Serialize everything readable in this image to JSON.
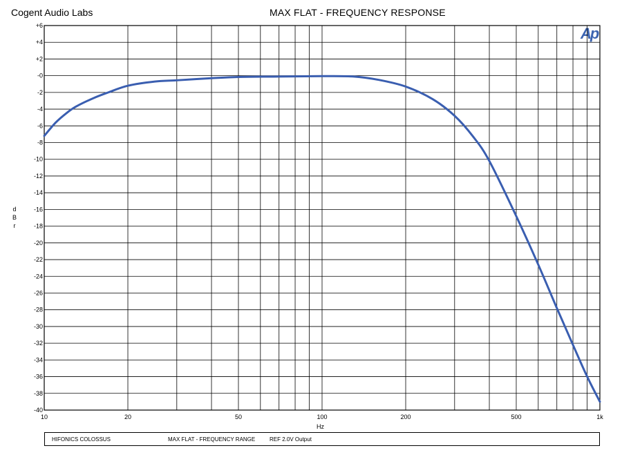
{
  "header": {
    "company": "Cogent Audio Labs",
    "title": "MAX FLAT  -  FREQUENCY RESPONSE"
  },
  "logo_text": "Ap",
  "footer": {
    "device": "HIFONICS COLOSSUS",
    "range": "MAX FLAT  -  FREQUENCY RANGE",
    "ref": "REF 2.0V Output"
  },
  "colors": {
    "curve": "#3a5eb0",
    "grid": "#000000",
    "logo": "#3c64b0"
  },
  "chart_data": {
    "type": "line",
    "title": "MAX FLAT  -  FREQUENCY RESPONSE",
    "xlabel": "Hz",
    "ylabel": "d B r",
    "xscale": "log",
    "xlim": [
      10,
      1000
    ],
    "ylim": [
      -40,
      6
    ],
    "grid": true,
    "xticks": [
      {
        "value": 10,
        "label": "10"
      },
      {
        "value": 20,
        "label": "20"
      },
      {
        "value": 50,
        "label": "50"
      },
      {
        "value": 100,
        "label": "100"
      },
      {
        "value": 200,
        "label": "200"
      },
      {
        "value": 500,
        "label": "500"
      },
      {
        "value": 1000,
        "label": "1k"
      }
    ],
    "yticks": [
      {
        "value": 6,
        "label": "+6"
      },
      {
        "value": 4,
        "label": "+4"
      },
      {
        "value": 2,
        "label": "+2"
      },
      {
        "value": 0,
        "label": "-0"
      },
      {
        "value": -2,
        "label": "-2"
      },
      {
        "value": -4,
        "label": "-4"
      },
      {
        "value": -6,
        "label": "-6"
      },
      {
        "value": -8,
        "label": "-8"
      },
      {
        "value": -10,
        "label": "-10"
      },
      {
        "value": -12,
        "label": "-12"
      },
      {
        "value": -14,
        "label": "-14"
      },
      {
        "value": -16,
        "label": "-16"
      },
      {
        "value": -18,
        "label": "-18"
      },
      {
        "value": -20,
        "label": "-20"
      },
      {
        "value": -22,
        "label": "-22"
      },
      {
        "value": -24,
        "label": "-24"
      },
      {
        "value": -26,
        "label": "-26"
      },
      {
        "value": -28,
        "label": "-28"
      },
      {
        "value": -30,
        "label": "-30"
      },
      {
        "value": -32,
        "label": "-32"
      },
      {
        "value": -34,
        "label": "-34"
      },
      {
        "value": -36,
        "label": "-36"
      },
      {
        "value": -38,
        "label": "-38"
      },
      {
        "value": -40,
        "label": "-40"
      }
    ],
    "series": [
      {
        "x": [
          10,
          11,
          12,
          13,
          15,
          17,
          20,
          25,
          30,
          40,
          50,
          70,
          100,
          130,
          160,
          200,
          250,
          300,
          350,
          400,
          500,
          600,
          700,
          800,
          900,
          1000
        ],
        "y": [
          -7.2,
          -5.6,
          -4.5,
          -3.7,
          -2.7,
          -2.0,
          -1.2,
          -0.7,
          -0.55,
          -0.3,
          -0.15,
          -0.1,
          -0.05,
          -0.1,
          -0.5,
          -1.3,
          -2.8,
          -4.8,
          -7.3,
          -10.2,
          -16.8,
          -22.6,
          -27.8,
          -32.2,
          -36.0,
          -39.0
        ]
      }
    ]
  }
}
